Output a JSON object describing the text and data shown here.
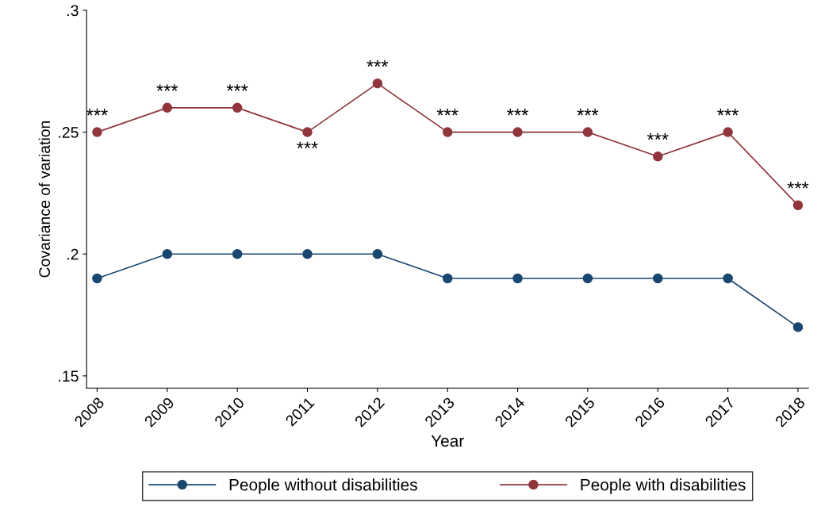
{
  "chart_data": {
    "type": "line",
    "xlabel": "Year",
    "ylabel": "Covariance of variation",
    "categories": [
      "2008",
      "2009",
      "2010",
      "2011",
      "2012",
      "2013",
      "2014",
      "2015",
      "2016",
      "2017",
      "2018"
    ],
    "series": [
      {
        "name": "People without disabilities",
        "color": "#1a476f",
        "values": [
          0.19,
          0.2,
          0.2,
          0.2,
          0.2,
          0.19,
          0.19,
          0.19,
          0.19,
          0.19,
          0.17
        ]
      },
      {
        "name": "People with disabilities",
        "color": "#90353b",
        "values": [
          0.25,
          0.26,
          0.26,
          0.25,
          0.27,
          0.25,
          0.25,
          0.25,
          0.24,
          0.25,
          0.22
        ]
      }
    ],
    "ylim": [
      0.145,
      0.3
    ],
    "yticks": [
      {
        "value": 0.15,
        "label": ".15"
      },
      {
        "value": 0.2,
        "label": ".2"
      },
      {
        "value": 0.25,
        "label": ".25"
      },
      {
        "value": 0.3,
        "label": ".3"
      }
    ],
    "annotations": [
      {
        "text": "***",
        "x": "2008",
        "y": 0.25
      },
      {
        "text": "***",
        "x": "2009",
        "y": 0.26
      },
      {
        "text": "***",
        "x": "2010",
        "y": 0.26
      },
      {
        "text": "***",
        "x": "2011",
        "y": 0.25
      },
      {
        "text": "***",
        "x": "2012",
        "y": 0.27
      },
      {
        "text": "***",
        "x": "2013",
        "y": 0.25
      },
      {
        "text": "***",
        "x": "2014",
        "y": 0.25
      },
      {
        "text": "***",
        "x": "2015",
        "y": 0.25
      },
      {
        "text": "***",
        "x": "2016",
        "y": 0.24
      },
      {
        "text": "***",
        "x": "2017",
        "y": 0.25
      },
      {
        "text": "***",
        "x": "2018",
        "y": 0.22
      }
    ],
    "legend": "bottom",
    "grid": false,
    "marker": "circle",
    "line_style": "solid"
  }
}
